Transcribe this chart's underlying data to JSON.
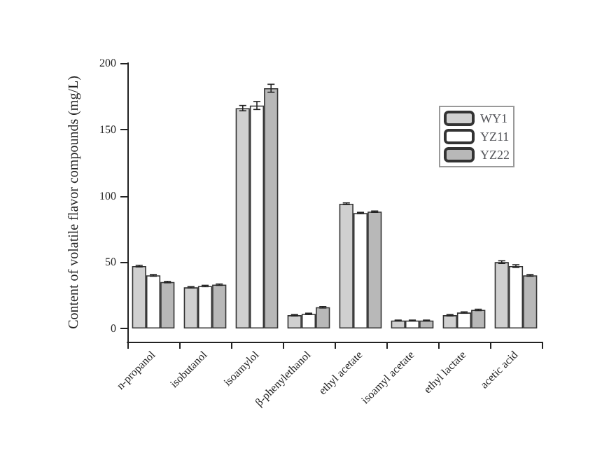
{
  "chart_data": {
    "type": "bar",
    "ylabel": "Content of volatile flavor compounds (mg/L)",
    "categories": [
      "n-propanol",
      "isobutanol",
      "isoamylol",
      "β-phenylethanol",
      "ethyl acetate",
      "isoamyl acetate",
      "ethyl lactate",
      "acetic acid"
    ],
    "series": [
      {
        "name": "WY1",
        "color": "#d0d0d0",
        "values": [
          47,
          31,
          166,
          10,
          94,
          6,
          10,
          50
        ],
        "errors": [
          0.6,
          0.5,
          2,
          0.5,
          0.6,
          0.3,
          0.5,
          1
        ]
      },
      {
        "name": "YZ11",
        "color": "#ffffff",
        "values": [
          40,
          32,
          168,
          11,
          87,
          6,
          12,
          47
        ],
        "errors": [
          0.6,
          0.5,
          3,
          0.5,
          0.5,
          0.3,
          0.5,
          1
        ]
      },
      {
        "name": "YZ22",
        "color": "#b8b8b8",
        "values": [
          35,
          33,
          181,
          16,
          88,
          6,
          14,
          40
        ],
        "errors": [
          0.5,
          0.5,
          3,
          0.5,
          0.5,
          0.3,
          0.5,
          0.6
        ]
      }
    ],
    "ylim": [
      -10,
      200
    ],
    "yticks": [
      0,
      50,
      100,
      150,
      200
    ],
    "grid": false,
    "legend": "top right"
  }
}
